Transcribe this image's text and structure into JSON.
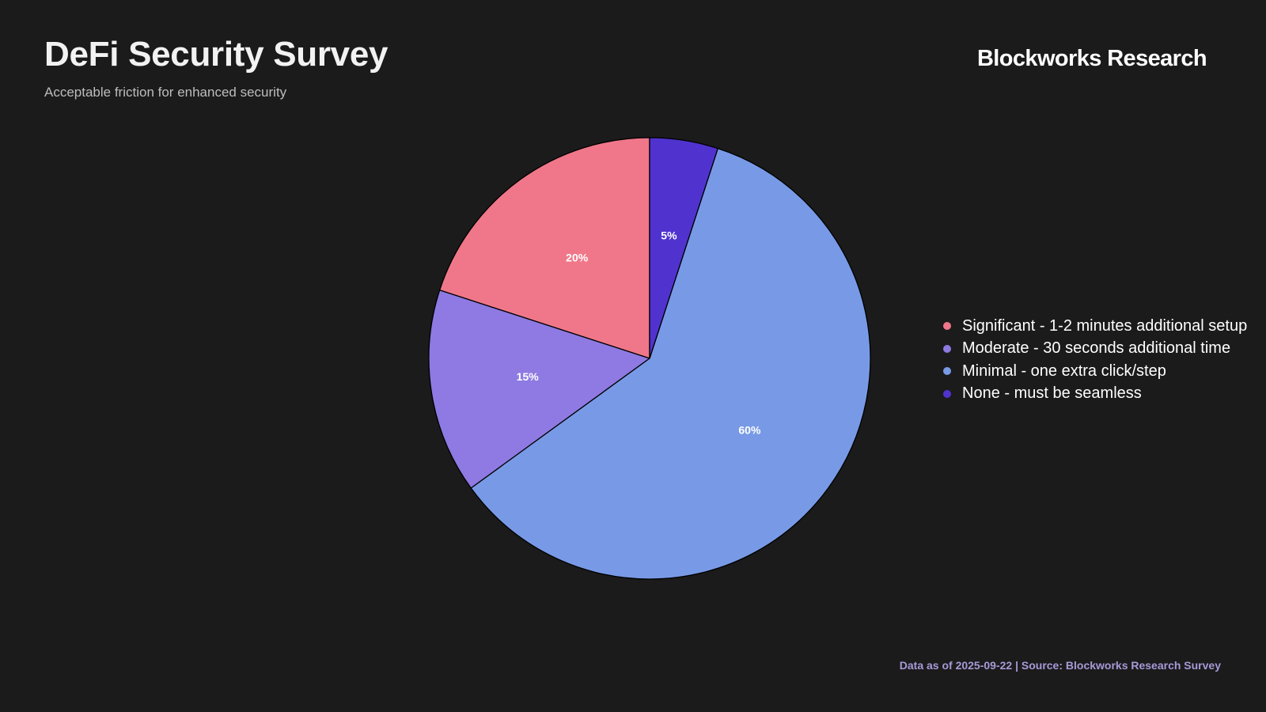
{
  "header": {
    "title": "DeFi Security Survey",
    "subtitle": "Acceptable friction for enhanced security",
    "brand": "Blockworks Research"
  },
  "footer": {
    "source": "Data as of 2025-09-22 | Source: Blockworks Research Survey"
  },
  "chart_data": {
    "type": "pie",
    "title": "DeFi Security Survey",
    "subtitle": "Acceptable friction for enhanced security",
    "categories": [
      "Significant - 1-2 minutes additional setup",
      "Moderate - 30 seconds additional time",
      "Minimal - one extra click/step",
      "None - must be seamless"
    ],
    "values": [
      20,
      15,
      60,
      5
    ],
    "value_labels": [
      "20%",
      "15%",
      "60%",
      "5%"
    ],
    "colors": [
      "#f07789",
      "#8e7ae2",
      "#789ae6",
      "#5033cf"
    ],
    "start_angle_deg": 0,
    "direction": "counterclockwise",
    "legend_position": "right"
  }
}
